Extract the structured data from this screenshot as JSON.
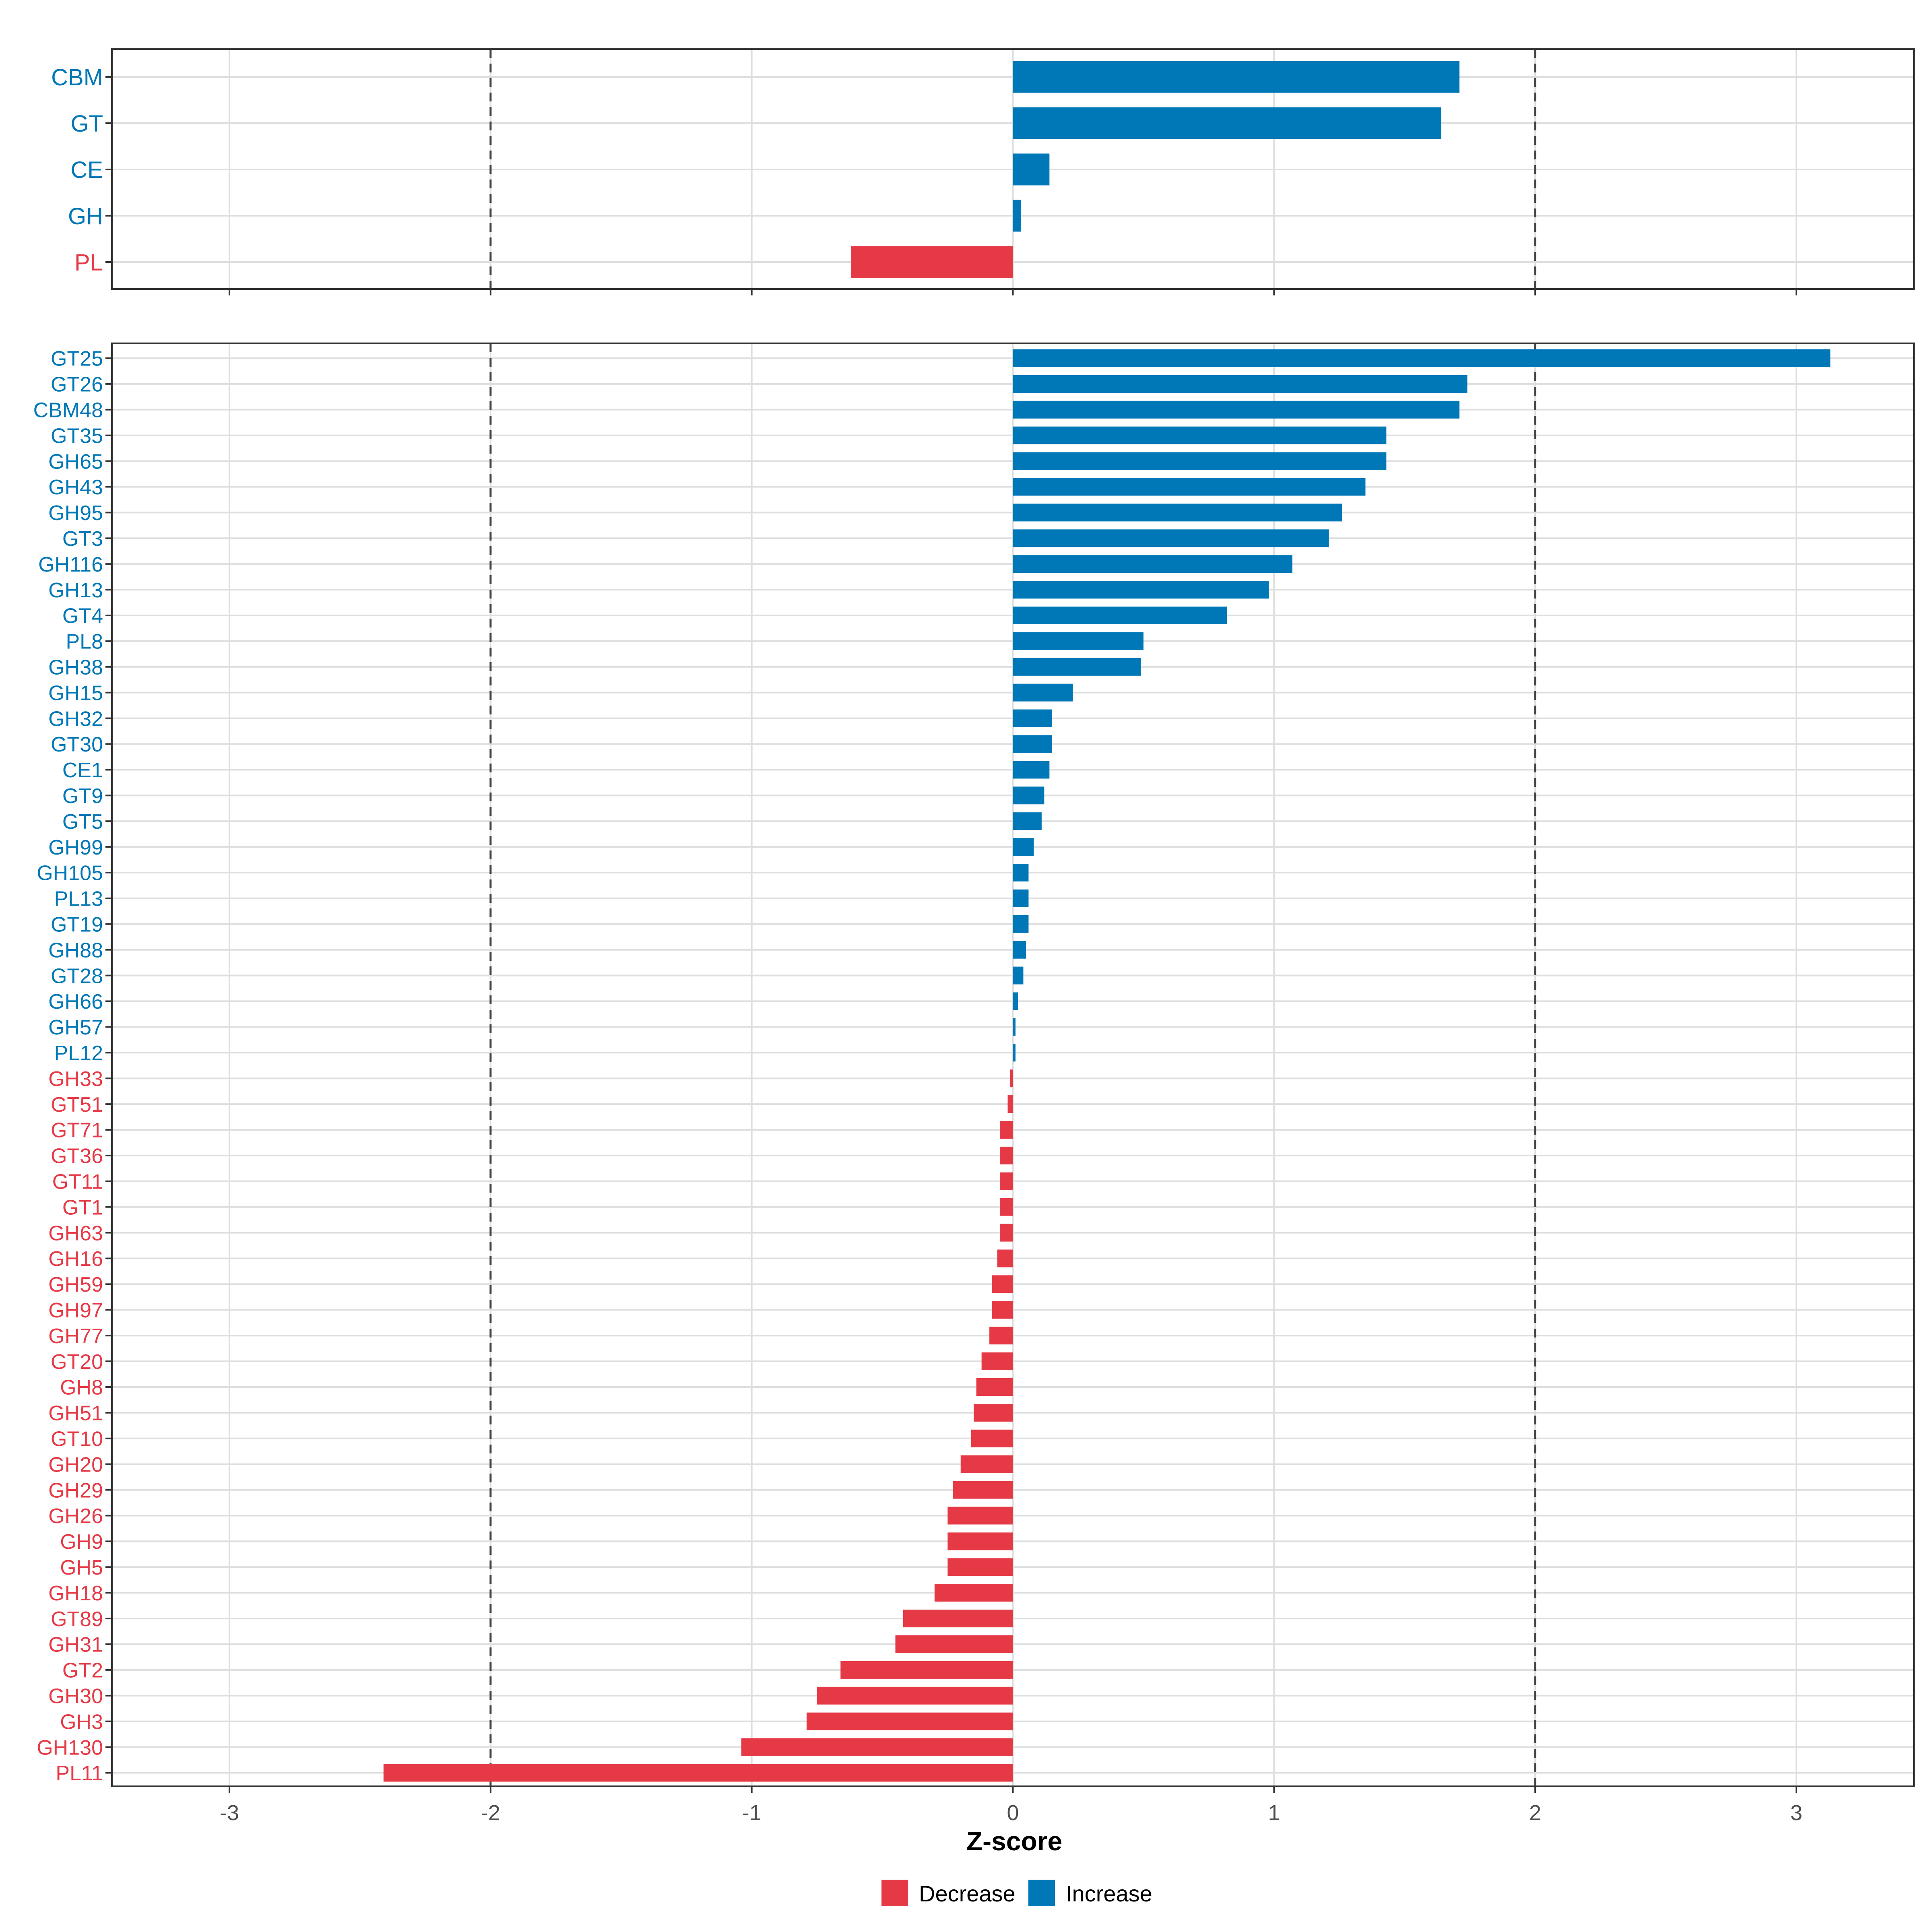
{
  "colors": {
    "decrease": "#E63946",
    "increase": "#0077B6",
    "grid": "#DEDEDE",
    "frame": "#333333",
    "tick_text": "#4D4D4D",
    "ref_line": "#444444"
  },
  "chart_data": [
    {
      "type": "bar",
      "orientation": "horizontal",
      "title": "",
      "xlabel": "",
      "ylabel": "",
      "xlim": [
        -3.45,
        3.45
      ],
      "x_ticks": [
        -3,
        -2,
        -1,
        0,
        1,
        2,
        3
      ],
      "x_tick_labels_shown": false,
      "reference_lines": [
        -2,
        2
      ],
      "grid": true,
      "categories": [
        "CBM",
        "GT",
        "CE",
        "GH",
        "PL"
      ],
      "values": [
        1.71,
        1.64,
        0.14,
        0.03,
        -0.62
      ]
    },
    {
      "type": "bar",
      "orientation": "horizontal",
      "title": "",
      "xlabel": "Z-score",
      "ylabel": "",
      "xlim": [
        -3.45,
        3.45
      ],
      "x_ticks": [
        -3,
        -2,
        -1,
        0,
        1,
        2,
        3
      ],
      "x_tick_labels": [
        "-3",
        "-2",
        "-1",
        "0",
        "1",
        "2",
        "3"
      ],
      "x_tick_labels_shown": true,
      "reference_lines": [
        -2,
        2
      ],
      "grid": true,
      "categories": [
        "GT25",
        "GT26",
        "CBM48",
        "GT35",
        "GH65",
        "GH43",
        "GH95",
        "GT3",
        "GH116",
        "GH13",
        "GT4",
        "PL8",
        "GH38",
        "GH15",
        "GH32",
        "GT30",
        "CE1",
        "GT9",
        "GT5",
        "GH99",
        "GH105",
        "PL13",
        "GT19",
        "GH88",
        "GT28",
        "GH66",
        "GH57",
        "PL12",
        "GH33",
        "GT51",
        "GT71",
        "GT36",
        "GT11",
        "GT1",
        "GH63",
        "GH16",
        "GH59",
        "GH97",
        "GH77",
        "GT20",
        "GH8",
        "GH51",
        "GT10",
        "GH20",
        "GH29",
        "GH26",
        "GH9",
        "GH5",
        "GH18",
        "GT89",
        "GH31",
        "GT2",
        "GH30",
        "GH3",
        "GH130",
        "PL11"
      ],
      "values": [
        3.13,
        1.74,
        1.71,
        1.43,
        1.43,
        1.35,
        1.26,
        1.21,
        1.07,
        0.98,
        0.82,
        0.5,
        0.49,
        0.23,
        0.15,
        0.15,
        0.14,
        0.12,
        0.11,
        0.08,
        0.06,
        0.06,
        0.06,
        0.05,
        0.04,
        0.02,
        0.01,
        0.01,
        -0.01,
        -0.02,
        -0.05,
        -0.05,
        -0.05,
        -0.05,
        -0.05,
        -0.06,
        -0.08,
        -0.08,
        -0.09,
        -0.12,
        -0.14,
        -0.15,
        -0.16,
        -0.2,
        -0.23,
        -0.25,
        -0.25,
        -0.25,
        -0.3,
        -0.42,
        -0.45,
        -0.66,
        -0.75,
        -0.79,
        -1.04,
        -2.41
      ]
    }
  ],
  "legend": {
    "position": "bottom",
    "items": [
      {
        "label": "Decrease",
        "color_key": "decrease"
      },
      {
        "label": "Increase",
        "color_key": "increase"
      }
    ]
  }
}
